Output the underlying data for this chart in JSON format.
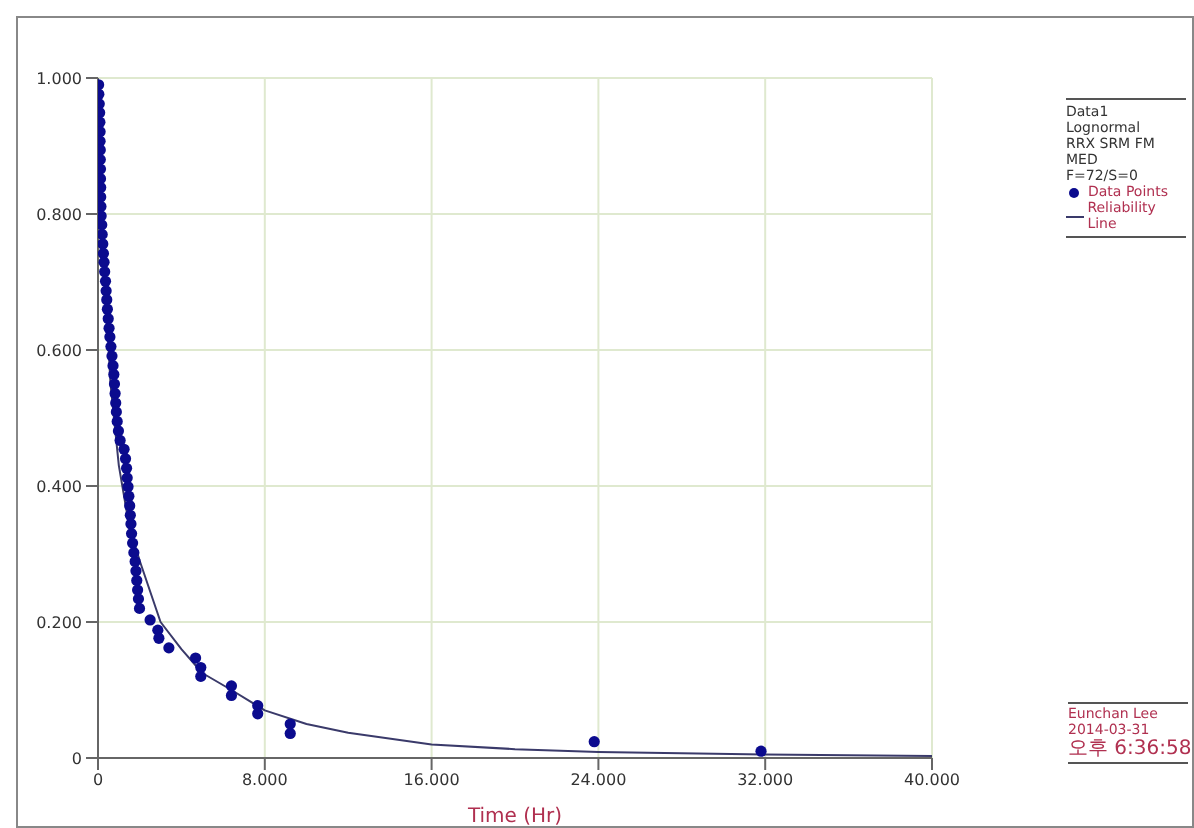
{
  "chart_data": {
    "type": "scatter",
    "xlabel": "Time (Hr)",
    "legend_title": "Data1\nLognormal\nRRX SRM FM MED\nF=72/S=0",
    "legend": "right",
    "grid": true,
    "xlim": [
      0,
      40
    ],
    "xticks": [
      0,
      {
        "value": 8,
        "label": "8.000"
      },
      {
        "value": 16,
        "label": "16.000"
      },
      {
        "value": 24,
        "label": "24.000"
      },
      {
        "value": 32,
        "label": "32.000"
      },
      {
        "value": 40,
        "label": "40.000"
      }
    ],
    "ylim": [
      0,
      1
    ],
    "yticks": [
      0,
      {
        "value": 0.2,
        "label": "0.200"
      },
      {
        "value": 0.4,
        "label": "0.400"
      },
      {
        "value": 0.6,
        "label": "0.600"
      },
      {
        "value": 0.8,
        "label": "0.800"
      },
      {
        "value": 1,
        "label": "1.000"
      }
    ],
    "annotations": [
      "Eunchan Lee",
      "2014-03-31",
      "오후 6:36:58"
    ],
    "series": [
      {
        "name": "Data Points",
        "color": "#0b0b8e",
        "x": [
          0.03,
          0.04,
          0.06,
          0.08,
          0.09,
          0.1,
          0.1,
          0.11,
          0.11,
          0.12,
          0.12,
          0.13,
          0.13,
          0.14,
          0.15,
          0.18,
          0.2,
          0.23,
          0.26,
          0.29,
          0.32,
          0.36,
          0.39,
          0.42,
          0.45,
          0.49,
          0.53,
          0.57,
          0.62,
          0.67,
          0.72,
          0.76,
          0.79,
          0.82,
          0.85,
          0.88,
          0.92,
          0.98,
          1.06,
          1.25,
          1.32,
          1.37,
          1.4,
          1.44,
          1.48,
          1.52,
          1.55,
          1.58,
          1.61,
          1.66,
          1.72,
          1.78,
          1.82,
          1.86,
          1.9,
          1.94,
          1.99,
          2.5,
          2.87,
          2.92,
          3.4,
          4.68,
          4.93,
          4.93,
          6.4,
          6.4,
          7.66,
          7.66,
          9.22,
          9.22,
          23.8,
          31.8
        ],
        "values": [
          0.99,
          0.976,
          0.962,
          0.949,
          0.935,
          0.921,
          0.907,
          0.894,
          0.88,
          0.866,
          0.852,
          0.839,
          0.825,
          0.811,
          0.797,
          0.784,
          0.77,
          0.756,
          0.742,
          0.729,
          0.715,
          0.701,
          0.687,
          0.674,
          0.66,
          0.646,
          0.632,
          0.619,
          0.605,
          0.591,
          0.577,
          0.564,
          0.55,
          0.536,
          0.522,
          0.509,
          0.495,
          0.481,
          0.467,
          0.454,
          0.44,
          0.426,
          0.412,
          0.399,
          0.385,
          0.371,
          0.357,
          0.344,
          0.33,
          0.316,
          0.302,
          0.289,
          0.275,
          0.261,
          0.247,
          0.234,
          0.22,
          0.203,
          0.188,
          0.176,
          0.162,
          0.147,
          0.133,
          0.12,
          0.106,
          0.092,
          0.077,
          0.065,
          0.05,
          0.036,
          0.024,
          0.01
        ]
      },
      {
        "name": "Reliability Line",
        "type": "line",
        "color": "#3a3a6a",
        "x": [
          0,
          0.1,
          0.3,
          0.6,
          1,
          1.5,
          2,
          3,
          4,
          5,
          6.4,
          8,
          10,
          12,
          16,
          20,
          24,
          32,
          40
        ],
        "values": [
          1,
          0.93,
          0.72,
          0.55,
          0.43,
          0.34,
          0.29,
          0.2,
          0.16,
          0.125,
          0.1,
          0.07,
          0.05,
          0.037,
          0.02,
          0.013,
          0.009,
          0.005,
          0.003
        ]
      }
    ]
  }
}
